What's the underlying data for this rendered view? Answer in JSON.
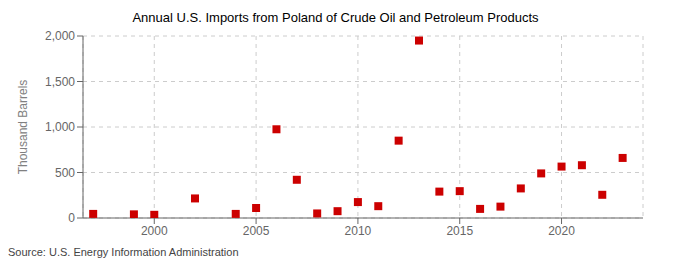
{
  "chart_data": {
    "type": "scatter",
    "title": "Annual U.S. Imports from Poland of Crude Oil and Petroleum Products",
    "ylabel": "Thousand Barrels",
    "annotation": "Source: U.S. Energy Information Administration",
    "x": [
      1997,
      1999,
      2000,
      2002,
      2004,
      2005,
      2006,
      2007,
      2008,
      2009,
      2010,
      2011,
      2012,
      2013,
      2014,
      2015,
      2016,
      2017,
      2018,
      2019,
      2020,
      2021,
      2022,
      2023
    ],
    "values": [
      45,
      40,
      35,
      215,
      45,
      110,
      975,
      420,
      50,
      75,
      175,
      130,
      850,
      1950,
      290,
      295,
      100,
      125,
      325,
      490,
      565,
      580,
      255,
      660
    ],
    "color": "#cc0000",
    "marker": "square",
    "xlim": [
      1996.5,
      2024
    ],
    "xticks": [
      2000,
      2005,
      2010,
      2015,
      2020
    ],
    "ylim": [
      0,
      2000
    ],
    "yticks": [
      0,
      500,
      {
        "value": 1000,
        "label": "1,000"
      },
      {
        "value": 1500,
        "label": "1,500"
      },
      {
        "value": 2000,
        "label": "2,000"
      }
    ],
    "grid": true
  }
}
